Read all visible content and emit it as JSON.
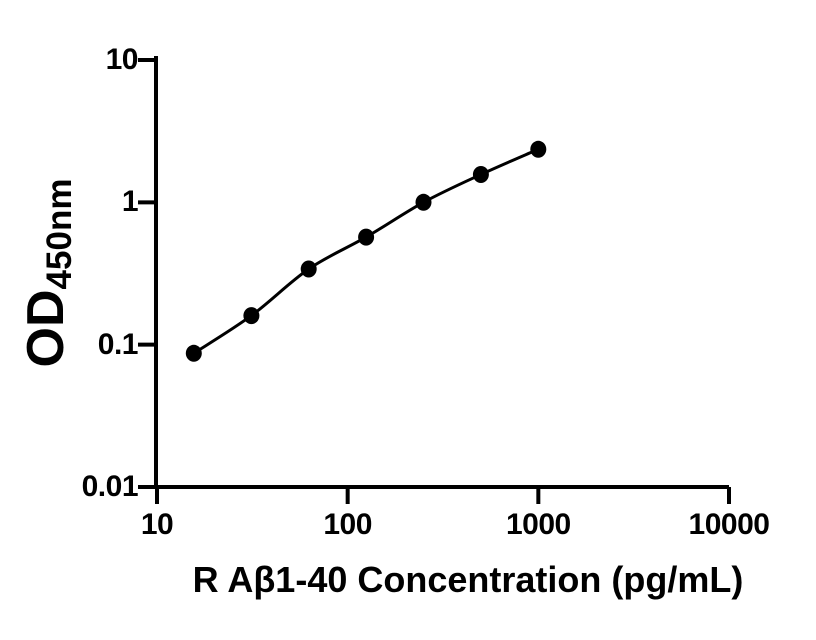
{
  "figure": {
    "background_color": "#ffffff",
    "axis_color": "#000000",
    "marker_color": "#000000",
    "line_color": "#000000"
  },
  "chart_data": {
    "type": "scatter",
    "title": "",
    "xlabel": "R Aβ1-40 Concentration (pg/mL)",
    "ylabel": "OD",
    "ylabel_subscript": "450nm",
    "xscale": "log",
    "yscale": "log",
    "xlim": [
      10,
      10000
    ],
    "ylim": [
      0.01,
      10
    ],
    "x_ticks": [
      10,
      100,
      1000,
      10000
    ],
    "x_tick_labels": [
      "10",
      "100",
      "1000",
      "10000"
    ],
    "y_ticks": [
      0.01,
      0.1,
      1,
      10
    ],
    "y_tick_labels": [
      "0.01",
      "0.1",
      "1",
      "10"
    ],
    "grid": false,
    "legend_position": "none",
    "series": [
      {
        "marker": "filled-circle",
        "x": [
          15.6,
          31.25,
          62.5,
          125,
          250,
          500,
          1000
        ],
        "y": [
          0.087,
          0.16,
          0.34,
          0.57,
          1.0,
          1.57,
          2.36
        ]
      }
    ]
  }
}
